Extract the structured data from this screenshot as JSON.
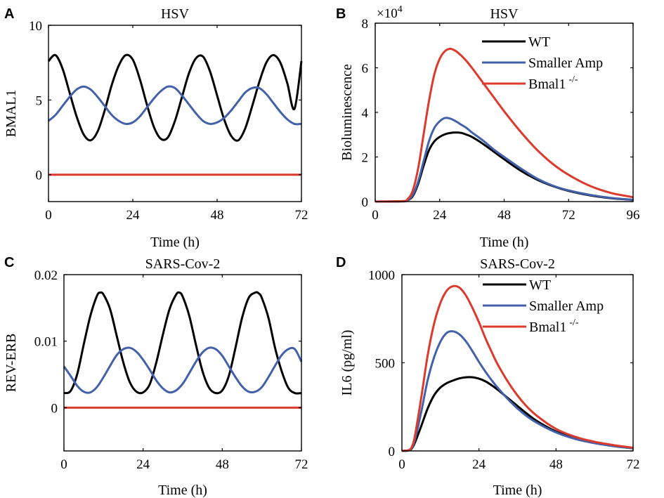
{
  "colors": {
    "WT": "#000000",
    "Smaller Amp": "#4361aa",
    "Bmal1": "#db3a2c"
  },
  "chart_data": [
    {
      "panel": "A",
      "type": "line",
      "title": "HSV",
      "xlabel": "Time (h)",
      "ylabel": "BMAL1",
      "xlim": [
        0,
        72
      ],
      "ylim": [
        -1.8,
        10
      ],
      "xticks": [
        "0",
        "24",
        "48",
        "72"
      ],
      "yticks": [
        "0",
        "5",
        "10"
      ],
      "legend": null,
      "series": [
        {
          "color_key": "WT",
          "x": [
            0,
            2,
            4,
            6,
            8,
            10,
            12,
            14,
            16,
            18,
            20,
            22,
            24,
            26,
            28,
            30,
            32,
            34,
            36,
            38,
            40,
            42,
            44,
            46,
            48,
            50,
            52,
            54,
            56,
            58,
            60,
            62,
            64,
            66,
            68,
            70,
            72
          ],
          "y": [
            7.6,
            8.0,
            7.1,
            5.5,
            3.9,
            2.7,
            2.3,
            2.9,
            4.3,
            6.0,
            7.3,
            8.0,
            7.7,
            6.4,
            4.7,
            3.2,
            2.4,
            2.5,
            3.6,
            5.2,
            6.8,
            7.8,
            7.9,
            6.9,
            5.3,
            3.7,
            2.6,
            2.3,
            3.1,
            4.6,
            6.2,
            7.5,
            8.0,
            7.5,
            6.1,
            4.4,
            7.6
          ]
        },
        {
          "color_key": "Smaller Amp",
          "x": [
            0,
            2,
            4,
            6,
            8,
            10,
            12,
            14,
            16,
            18,
            20,
            22,
            24,
            26,
            28,
            30,
            32,
            34,
            36,
            38,
            40,
            42,
            44,
            46,
            48,
            50,
            52,
            54,
            56,
            58,
            60,
            62,
            64,
            66,
            68,
            70,
            72
          ],
          "y": [
            3.6,
            4.0,
            4.6,
            5.2,
            5.7,
            5.9,
            5.7,
            5.2,
            4.6,
            4.0,
            3.6,
            3.4,
            3.5,
            3.9,
            4.5,
            5.1,
            5.6,
            5.9,
            5.8,
            5.3,
            4.7,
            4.1,
            3.6,
            3.4,
            3.5,
            3.8,
            4.3,
            4.9,
            5.5,
            5.8,
            5.8,
            5.4,
            4.8,
            4.2,
            3.7,
            3.4,
            3.4
          ]
        },
        {
          "color_key": "Bmal1",
          "x": [
            0,
            72
          ],
          "y": [
            0,
            0
          ]
        }
      ]
    },
    {
      "panel": "B",
      "type": "line",
      "title": "HSV",
      "xlabel": "Time (h)",
      "ylabel": "Bioluminescence",
      "multiplier": "×10",
      "multiplier_exp": "4",
      "xlim": [
        0,
        96
      ],
      "ylim": [
        0,
        8
      ],
      "xticks": [
        "0",
        "24",
        "48",
        "72",
        "96"
      ],
      "yticks": [
        "0",
        "2",
        "4",
        "6",
        "8"
      ],
      "legend": {
        "position": "top-right",
        "entries": [
          "WT",
          "Smaller Amp",
          "Bmal1"
        ],
        "sup": [
          "",
          "",
          "-/-"
        ]
      },
      "series": [
        {
          "color_key": "WT",
          "x": [
            0,
            10,
            12,
            14,
            16,
            18,
            20,
            22,
            24,
            26,
            28,
            30,
            32,
            34,
            36,
            40,
            44,
            48,
            54,
            60,
            66,
            72,
            80,
            88,
            96
          ],
          "y": [
            0,
            0.01,
            0.05,
            0.25,
            0.8,
            1.6,
            2.3,
            2.7,
            2.9,
            3.02,
            3.08,
            3.1,
            3.08,
            3.0,
            2.9,
            2.6,
            2.25,
            1.9,
            1.4,
            1.0,
            0.7,
            0.48,
            0.28,
            0.15,
            0.08
          ]
        },
        {
          "color_key": "Smaller Amp",
          "x": [
            0,
            10,
            12,
            14,
            16,
            18,
            20,
            22,
            24,
            26,
            28,
            30,
            32,
            34,
            36,
            40,
            44,
            48,
            54,
            60,
            66,
            72,
            80,
            88,
            96
          ],
          "y": [
            0,
            0.01,
            0.06,
            0.3,
            0.9,
            1.8,
            2.7,
            3.3,
            3.6,
            3.75,
            3.72,
            3.6,
            3.45,
            3.3,
            3.1,
            2.75,
            2.35,
            2.0,
            1.5,
            1.05,
            0.72,
            0.5,
            0.3,
            0.16,
            0.08
          ]
        },
        {
          "color_key": "Bmal1",
          "x": [
            0,
            10,
            12,
            14,
            16,
            18,
            20,
            22,
            24,
            26,
            28,
            30,
            32,
            34,
            36,
            40,
            44,
            48,
            54,
            60,
            66,
            72,
            80,
            88,
            96
          ],
          "y": [
            0,
            0.02,
            0.1,
            0.5,
            1.5,
            3.0,
            4.5,
            5.7,
            6.4,
            6.75,
            6.85,
            6.75,
            6.55,
            6.3,
            6.0,
            5.35,
            4.7,
            4.05,
            3.15,
            2.35,
            1.7,
            1.2,
            0.7,
            0.38,
            0.2
          ]
        }
      ]
    },
    {
      "panel": "C",
      "type": "line",
      "title": "SARS-Cov-2",
      "xlabel": "Time (h)",
      "ylabel": "REV-ERB",
      "xlim": [
        0,
        72
      ],
      "ylim": [
        -0.0065,
        0.02
      ],
      "xticks": [
        "0",
        "24",
        "48",
        "72"
      ],
      "yticks": [
        "0",
        "0.01",
        "0.02"
      ],
      "legend": null,
      "series": [
        {
          "color_key": "WT",
          "x": [
            0,
            2,
            4,
            6,
            8,
            10,
            11,
            12,
            14,
            16,
            18,
            20,
            22,
            24,
            26,
            28,
            30,
            32,
            34,
            35,
            36,
            38,
            40,
            42,
            44,
            46,
            48,
            50,
            52,
            54,
            56,
            58,
            59,
            60,
            62,
            64,
            66,
            68,
            70,
            72
          ],
          "y": [
            0.0022,
            0.0025,
            0.005,
            0.0095,
            0.0138,
            0.0168,
            0.0173,
            0.017,
            0.0148,
            0.0108,
            0.0068,
            0.0038,
            0.0024,
            0.0023,
            0.0035,
            0.0068,
            0.011,
            0.0148,
            0.017,
            0.0173,
            0.0167,
            0.0138,
            0.0095,
            0.0055,
            0.003,
            0.0022,
            0.0026,
            0.0048,
            0.009,
            0.0135,
            0.0165,
            0.0173,
            0.0172,
            0.0165,
            0.0135,
            0.009,
            0.0055,
            0.003,
            0.0022,
            0.0022
          ]
        },
        {
          "color_key": "Smaller Amp",
          "x": [
            0,
            2,
            4,
            6,
            8,
            10,
            12,
            14,
            16,
            18,
            20,
            22,
            24,
            26,
            28,
            30,
            32,
            34,
            36,
            38,
            40,
            42,
            44,
            46,
            48,
            50,
            52,
            54,
            56,
            58,
            60,
            62,
            64,
            66,
            68,
            70,
            72
          ],
          "y": [
            0.0062,
            0.0048,
            0.0033,
            0.0024,
            0.0023,
            0.0031,
            0.0046,
            0.0063,
            0.0079,
            0.0088,
            0.009,
            0.0084,
            0.0072,
            0.0057,
            0.0041,
            0.0029,
            0.0023,
            0.0026,
            0.0036,
            0.0052,
            0.0069,
            0.0083,
            0.009,
            0.0088,
            0.0078,
            0.0062,
            0.0046,
            0.0032,
            0.0024,
            0.0024,
            0.0031,
            0.0046,
            0.0063,
            0.0079,
            0.0088,
            0.0088,
            0.0069
          ]
        },
        {
          "color_key": "Bmal1",
          "x": [
            0,
            72
          ],
          "y": [
            0,
            0
          ]
        }
      ]
    },
    {
      "panel": "D",
      "type": "line",
      "title": "SARS-Cov-2",
      "xlabel": "Time (h)",
      "ylabel": "IL6 (pg/ml)",
      "xlim": [
        0,
        72
      ],
      "ylim": [
        0,
        1000
      ],
      "xticks": [
        "0",
        "24",
        "48",
        "72"
      ],
      "yticks": [
        "0",
        "500",
        "1000"
      ],
      "legend": {
        "position": "top-right",
        "entries": [
          "WT",
          "Smaller Amp",
          "Bmal1"
        ],
        "sup": [
          "",
          "",
          "-/-"
        ]
      },
      "series": [
        {
          "color_key": "WT",
          "x": [
            0,
            2,
            3,
            4,
            6,
            8,
            10,
            12,
            14,
            16,
            18,
            20,
            22,
            24,
            26,
            28,
            30,
            34,
            38,
            42,
            48,
            54,
            60,
            66,
            72
          ],
          "y": [
            0,
            3,
            12,
            45,
            140,
            240,
            315,
            360,
            385,
            400,
            412,
            418,
            418,
            410,
            395,
            372,
            345,
            285,
            225,
            170,
            110,
            70,
            45,
            28,
            15
          ]
        },
        {
          "color_key": "Smaller Amp",
          "x": [
            0,
            2,
            3,
            4,
            6,
            8,
            10,
            12,
            14,
            16,
            18,
            20,
            22,
            24,
            26,
            28,
            30,
            34,
            38,
            42,
            48,
            54,
            60,
            66,
            72
          ],
          "y": [
            0,
            3,
            15,
            60,
            220,
            400,
            530,
            620,
            670,
            678,
            660,
            620,
            565,
            505,
            450,
            400,
            355,
            275,
            210,
            160,
            105,
            68,
            44,
            27,
            15
          ]
        },
        {
          "color_key": "Bmal1",
          "x": [
            0,
            2,
            3,
            4,
            6,
            8,
            10,
            12,
            14,
            16,
            18,
            20,
            22,
            24,
            26,
            28,
            30,
            34,
            38,
            42,
            48,
            54,
            60,
            66,
            72
          ],
          "y": [
            0,
            4,
            20,
            80,
            300,
            540,
            720,
            840,
            910,
            935,
            925,
            880,
            810,
            730,
            640,
            560,
            485,
            365,
            270,
            200,
            125,
            80,
            52,
            33,
            18
          ]
        }
      ]
    }
  ]
}
